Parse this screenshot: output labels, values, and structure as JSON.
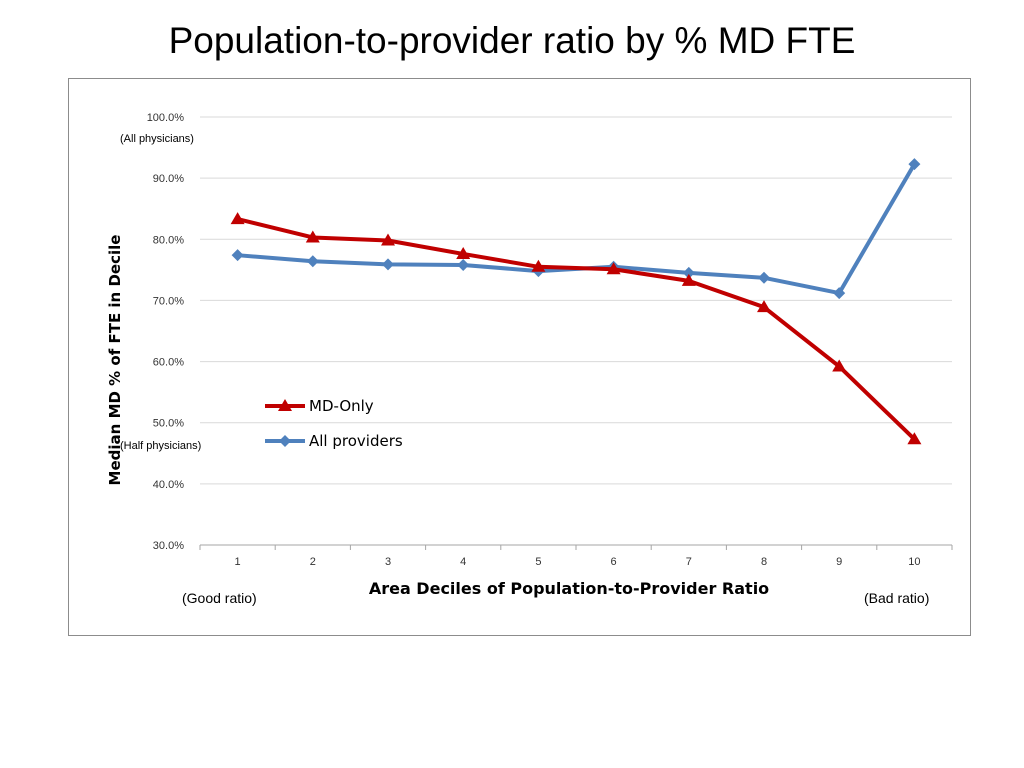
{
  "slide": {
    "title": "Population-to-provider ratio by % MD FTE"
  },
  "chart_data": {
    "type": "line",
    "title": "",
    "xlabel": "Area Deciles of Population-to-Provider Ratio",
    "ylabel": "Median MD %  of  FTE in Decile",
    "x": [
      1,
      2,
      3,
      4,
      5,
      6,
      7,
      8,
      9,
      10
    ],
    "ylim": [
      30,
      100
    ],
    "yticks": [
      "30.0%",
      "40.0%",
      "50.0%",
      "60.0%",
      "70.0%",
      "80.0%",
      "90.0%",
      "100.0%"
    ],
    "grid": true,
    "legend_position": "center-left",
    "series": [
      {
        "name": "MD-Only",
        "color": "#c00000",
        "marker": "triangle",
        "values": [
          83.3,
          80.3,
          79.8,
          77.6,
          75.5,
          75.1,
          73.2,
          68.9,
          59.2,
          47.3
        ]
      },
      {
        "name": "All providers",
        "color": "#4f81bd",
        "marker": "diamond",
        "values": [
          77.4,
          76.4,
          75.9,
          75.8,
          74.8,
          75.5,
          74.5,
          73.7,
          71.2,
          92.3
        ]
      }
    ],
    "annotations": {
      "top": "(All physicians)",
      "half": "(Half physicians)",
      "left_end": "(Good ratio)",
      "right_end": "(Bad ratio)"
    }
  }
}
